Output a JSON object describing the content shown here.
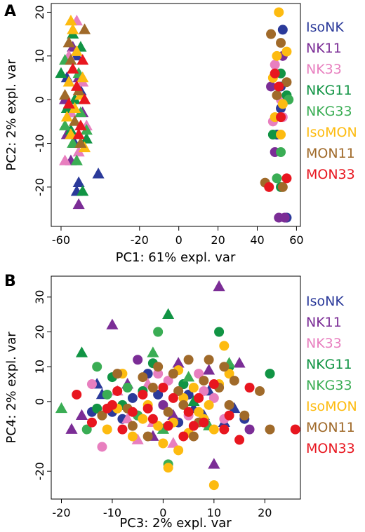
{
  "colors": {
    "IsoNK": "#2b3a9a",
    "NK11": "#7b2d96",
    "NK33": "#e87fbf",
    "NKG11": "#119444",
    "NKG33": "#3aad54",
    "IsoMON": "#fdbb10",
    "MON11": "#a06a2a",
    "MON33": "#e8161f"
  },
  "chart_data": [
    {
      "panel_label": "A",
      "type": "scatter",
      "xlabel": "PC1: 61% expl. var",
      "ylabel": "PC2: 2% expl. var",
      "xlim": [
        -65,
        62
      ],
      "ylim": [
        -29,
        22
      ],
      "xticks": [
        -60,
        -20,
        0,
        20,
        40,
        60
      ],
      "yticks": [
        -20,
        -10,
        0,
        10,
        20
      ],
      "legend": [
        "IsoNK",
        "NK11",
        "NK33",
        "NKG11",
        "NKG33",
        "IsoMON",
        "MON11",
        "MON33"
      ],
      "legend_position": "right",
      "markers": {
        "triangle": "left cluster",
        "circle": "right cluster"
      },
      "series": [
        {
          "name": "IsoNK",
          "points": [
            [
              -52,
              -21
            ],
            [
              -55,
              -3
            ],
            [
              -50,
              2
            ],
            [
              -41,
              -17
            ],
            [
              -51,
              -19
            ],
            [
              -52,
              10
            ],
            [
              52,
              3
            ],
            [
              50,
              -8
            ],
            [
              53,
              16
            ],
            [
              52,
              -2
            ],
            [
              55,
              -27
            ],
            [
              -57,
              5
            ],
            [
              -53,
              -10
            ]
          ]
        },
        {
          "name": "NK11",
          "points": [
            [
              -51,
              -24
            ],
            [
              -57,
              -8
            ],
            [
              -51,
              5
            ],
            [
              -54,
              12
            ],
            [
              -49,
              -3
            ],
            [
              -55,
              -14
            ],
            [
              51,
              -27
            ],
            [
              49,
              -12
            ],
            [
              47,
              3
            ],
            [
              54,
              -27
            ],
            [
              53,
              10
            ],
            [
              -58,
              0
            ]
          ]
        },
        {
          "name": "NK33",
          "points": [
            [
              -58,
              -14
            ],
            [
              -52,
              18
            ],
            [
              -49,
              4
            ],
            [
              -56,
              10
            ],
            [
              -55,
              -3
            ],
            [
              -47,
              -6
            ],
            [
              53,
              -4
            ],
            [
              52,
              0
            ],
            [
              49,
              8
            ],
            [
              48,
              -5
            ],
            [
              -51,
              -12
            ]
          ]
        },
        {
          "name": "NKG11",
          "points": [
            [
              -49,
              -21
            ],
            [
              -55,
              -7
            ],
            [
              -60,
              6
            ],
            [
              -53,
              0
            ],
            [
              -50,
              12
            ],
            [
              -57,
              -2
            ],
            [
              52,
              -20
            ],
            [
              55,
              1
            ],
            [
              48,
              -8
            ],
            [
              52,
              6
            ],
            [
              -54,
              15
            ],
            [
              -47,
              -9
            ]
          ]
        },
        {
          "name": "NKG33",
          "points": [
            [
              -58,
              -6
            ],
            [
              -54,
              -10
            ],
            [
              -47,
              -7
            ],
            [
              -52,
              -14
            ],
            [
              -51,
              6
            ],
            [
              50,
              -18
            ],
            [
              52,
              -12
            ],
            [
              56,
              0
            ],
            [
              -50,
              -3
            ],
            [
              -58,
              9
            ]
          ]
        },
        {
          "name": "IsoMON",
          "points": [
            [
              -55,
              18
            ],
            [
              -54,
              16
            ],
            [
              -56,
              4
            ],
            [
              -50,
              1
            ],
            [
              -53,
              -2
            ],
            [
              -48,
              -11
            ],
            [
              -57,
              -4
            ],
            [
              -52,
              11
            ],
            [
              51,
              20
            ],
            [
              50,
              10
            ],
            [
              53,
              -1
            ],
            [
              55,
              11
            ],
            [
              48,
              5
            ],
            [
              52,
              -8
            ],
            [
              49,
              -4
            ],
            [
              -55,
              -8
            ],
            [
              -49,
              5
            ]
          ]
        },
        {
          "name": "MON11",
          "points": [
            [
              -48,
              16
            ],
            [
              -55,
              9
            ],
            [
              -58,
              1
            ],
            [
              -51,
              2
            ],
            [
              -53,
              -5
            ],
            [
              -50,
              -10
            ],
            [
              44,
              -19
            ],
            [
              47,
              15
            ],
            [
              52,
              13
            ],
            [
              53,
              -20
            ],
            [
              55,
              4
            ],
            [
              50,
              1
            ],
            [
              -56,
              13
            ]
          ]
        },
        {
          "name": "MON33",
          "points": [
            [
              -50,
              -6
            ],
            [
              -54,
              7
            ],
            [
              -52,
              3
            ],
            [
              -49,
              9
            ],
            [
              -56,
              -1
            ],
            [
              55,
              -18
            ],
            [
              49,
              6
            ],
            [
              52,
              -4
            ],
            [
              46,
              -20
            ],
            [
              51,
              3
            ],
            [
              -51,
              -8
            ],
            [
              -48,
              0
            ]
          ]
        }
      ]
    },
    {
      "panel_label": "B",
      "type": "scatter",
      "xlabel": "PC3: 2% expl. var",
      "ylabel": "PC4: 2% expl. var",
      "xlim": [
        -22,
        27
      ],
      "ylim": [
        -28,
        36
      ],
      "xticks": [
        -20,
        -10,
        0,
        10,
        20
      ],
      "yticks": [
        -20,
        0,
        10,
        20,
        30
      ],
      "legend": [
        "IsoNK",
        "NK11",
        "NK33",
        "NKG11",
        "NKG33",
        "IsoMON",
        "MON11",
        "MON33"
      ],
      "legend_position": "right",
      "markers": {
        "triangle": "NK groups",
        "circle": "MON groups"
      },
      "series": [
        {
          "name": "IsoNK",
          "points": [
            [
              -13,
              5
            ],
            [
              -12,
              2
            ],
            [
              -8,
              -5
            ],
            [
              -5,
              -4
            ],
            [
              -3,
              8
            ],
            [
              5,
              2
            ],
            [
              -10,
              -3
            ],
            [
              3,
              -6
            ],
            [
              8,
              -4
            ],
            [
              14,
              -2
            ],
            [
              16,
              -5
            ],
            [
              -1,
              2
            ],
            [
              4,
              5
            ],
            [
              -14,
              -3
            ],
            [
              6,
              -2
            ],
            [
              9,
              3
            ],
            [
              -6,
              1
            ],
            [
              12,
              -6
            ]
          ]
        },
        {
          "name": "NK11",
          "points": [
            [
              -10,
              22
            ],
            [
              -16,
              -4
            ],
            [
              -18,
              -8
            ],
            [
              -5,
              12
            ],
            [
              3,
              11
            ],
            [
              10,
              -18
            ],
            [
              11,
              33
            ],
            [
              17,
              -8
            ],
            [
              -7,
              5
            ],
            [
              0,
              -1
            ],
            [
              9,
              9
            ],
            [
              2,
              -4
            ],
            [
              15,
              11
            ],
            [
              -2,
              -10
            ]
          ]
        },
        {
          "name": "NK33",
          "points": [
            [
              -12,
              -13
            ],
            [
              -9,
              3
            ],
            [
              -7,
              -5
            ],
            [
              -5,
              -11
            ],
            [
              -3,
              5
            ],
            [
              -1,
              8
            ],
            [
              2,
              -12
            ],
            [
              5,
              -4
            ],
            [
              8,
              3
            ],
            [
              12,
              -5
            ],
            [
              -14,
              5
            ],
            [
              1,
              6
            ],
            [
              10,
              1
            ],
            [
              -2,
              -6
            ],
            [
              7,
              8
            ]
          ]
        },
        {
          "name": "NKG11",
          "points": [
            [
              -16,
              14
            ],
            [
              -13,
              -2
            ],
            [
              -10,
              7
            ],
            [
              -2,
              11
            ],
            [
              1,
              25
            ],
            [
              4,
              5
            ],
            [
              11,
              20
            ],
            [
              13,
              10
            ],
            [
              21,
              8
            ],
            [
              -8,
              -1
            ],
            [
              6,
              0
            ],
            [
              -4,
              3
            ]
          ]
        },
        {
          "name": "NKG33",
          "points": [
            [
              -20,
              -2
            ],
            [
              -15,
              -8
            ],
            [
              -13,
              10
            ],
            [
              -7,
              4
            ],
            [
              -5,
              -4
            ],
            [
              -2,
              14
            ],
            [
              0,
              -8
            ],
            [
              1,
              -18
            ],
            [
              -1,
              20
            ],
            [
              13,
              11
            ],
            [
              -11,
              2
            ],
            [
              5,
              7
            ],
            [
              9,
              -7
            ]
          ]
        },
        {
          "name": "IsoMON",
          "points": [
            [
              -9,
              -2
            ],
            [
              -8,
              8
            ],
            [
              -6,
              -10
            ],
            [
              -3,
              -1
            ],
            [
              -1,
              -7
            ],
            [
              0,
              -12
            ],
            [
              2,
              -6
            ],
            [
              3,
              -14
            ],
            [
              4,
              1
            ],
            [
              5,
              -9
            ],
            [
              7,
              -3
            ],
            [
              8,
              -5
            ],
            [
              10,
              -8
            ],
            [
              11,
              5
            ],
            [
              12,
              16
            ],
            [
              13,
              8
            ],
            [
              10,
              -24
            ],
            [
              1,
              -19
            ],
            [
              -4,
              -5
            ],
            [
              6,
              4
            ],
            [
              -11,
              -8
            ],
            [
              9,
              -1
            ],
            [
              3,
              9
            ]
          ]
        },
        {
          "name": "MON11",
          "points": [
            [
              -12,
              -4
            ],
            [
              -9,
              8
            ],
            [
              -7,
              -2
            ],
            [
              -4,
              7
            ],
            [
              -3,
              -10
            ],
            [
              -1,
              10
            ],
            [
              1,
              -3
            ],
            [
              2,
              8
            ],
            [
              4,
              -1
            ],
            [
              5,
              12
            ],
            [
              6,
              -10
            ],
            [
              8,
              6
            ],
            [
              9,
              12
            ],
            [
              11,
              4
            ],
            [
              12,
              10
            ],
            [
              14,
              6
            ],
            [
              16,
              -4
            ],
            [
              19,
              3
            ],
            [
              21,
              -8
            ],
            [
              -6,
              -7
            ],
            [
              3,
              3
            ],
            [
              7,
              -6
            ],
            [
              -2,
              4
            ],
            [
              13,
              -1
            ]
          ]
        },
        {
          "name": "MON33",
          "points": [
            [
              -17,
              2
            ],
            [
              -14,
              -6
            ],
            [
              -11,
              -2
            ],
            [
              -9,
              3
            ],
            [
              -8,
              -8
            ],
            [
              -6,
              -3
            ],
            [
              -4,
              2
            ],
            [
              -2,
              -5
            ],
            [
              0,
              4
            ],
            [
              1,
              -7
            ],
            [
              2,
              1
            ],
            [
              4,
              -10
            ],
            [
              6,
              -7
            ],
            [
              8,
              -6
            ],
            [
              10,
              5
            ],
            [
              13,
              -4
            ],
            [
              15,
              -11
            ],
            [
              17,
              4
            ],
            [
              26,
              -8
            ],
            [
              -3,
              -2
            ],
            [
              5,
              -3
            ],
            [
              12,
              -8
            ],
            [
              -10,
              -1
            ],
            [
              7,
              1
            ]
          ]
        }
      ]
    }
  ]
}
